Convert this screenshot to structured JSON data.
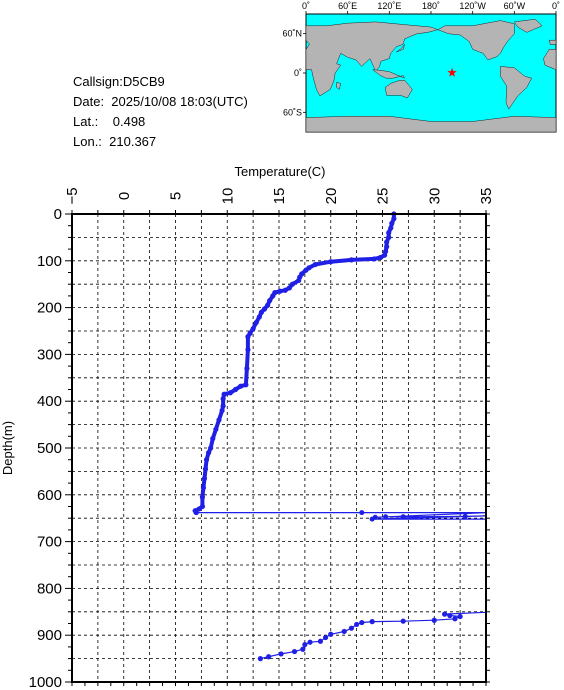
{
  "info": {
    "callsign": "Callsign:D5CB9",
    "date": "Date:  2025/10/08 18:03(UTC)",
    "lat": "Lat.:    0.498",
    "lon": "Lon.:  210.367"
  },
  "map": {
    "lon_ticks": [
      "0˚",
      "60˚E",
      "120˚E",
      "180˚",
      "120˚W",
      "60˚W",
      "0˚"
    ],
    "lat_ticks": [
      "60˚N",
      "0˚",
      "60˚S"
    ],
    "marker_lon": 210.367,
    "marker_lat": 0.498,
    "colors": {
      "ocean": "#00ffff",
      "land": "#b4b4b4",
      "marker": "#ff0000"
    }
  },
  "chart_data": {
    "type": "line",
    "xlabel": "Temperature(C)",
    "ylabel": "Depth(m)",
    "xlim": [
      -5,
      35
    ],
    "ylim": [
      0,
      1000
    ],
    "x_ticks": [
      "−5",
      "0",
      "5",
      "10",
      "15",
      "20",
      "25",
      "30",
      "35"
    ],
    "y_ticks": [
      "0",
      "100",
      "200",
      "300",
      "400",
      "500",
      "600",
      "700",
      "800",
      "900",
      "1000"
    ],
    "series_color": "#1f1fe6",
    "profile": [
      [
        26.1,
        0
      ],
      [
        26.1,
        10
      ],
      [
        25.9,
        20
      ],
      [
        25.8,
        30
      ],
      [
        25.6,
        40
      ],
      [
        25.6,
        50
      ],
      [
        25.4,
        60
      ],
      [
        25.4,
        70
      ],
      [
        25.3,
        80
      ],
      [
        25.2,
        88
      ],
      [
        24.8,
        93
      ],
      [
        24.2,
        96
      ],
      [
        22.0,
        98
      ],
      [
        20.0,
        102
      ],
      [
        18.5,
        108
      ],
      [
        17.9,
        115
      ],
      [
        17.6,
        120
      ],
      [
        17.2,
        128
      ],
      [
        17.0,
        135
      ],
      [
        16.9,
        142
      ],
      [
        16.3,
        150
      ],
      [
        16.0,
        158
      ],
      [
        15.6,
        163
      ],
      [
        15.1,
        165
      ],
      [
        14.6,
        168
      ],
      [
        14.4,
        175
      ],
      [
        14.1,
        185
      ],
      [
        13.9,
        195
      ],
      [
        13.6,
        203
      ],
      [
        13.3,
        210
      ],
      [
        13.1,
        220
      ],
      [
        12.8,
        232
      ],
      [
        12.5,
        245
      ],
      [
        12.2,
        255
      ],
      [
        12.0,
        262
      ],
      [
        12.0,
        290
      ],
      [
        11.9,
        330
      ],
      [
        11.8,
        365
      ],
      [
        11.3,
        368
      ],
      [
        10.8,
        375
      ],
      [
        10.3,
        382
      ],
      [
        9.7,
        385
      ],
      [
        9.6,
        395
      ],
      [
        9.6,
        410
      ],
      [
        9.5,
        420
      ],
      [
        9.2,
        440
      ],
      [
        8.9,
        460
      ],
      [
        8.6,
        480
      ],
      [
        8.4,
        500
      ],
      [
        8.2,
        510
      ],
      [
        8.0,
        525
      ],
      [
        7.9,
        545
      ],
      [
        7.8,
        565
      ],
      [
        7.7,
        585
      ],
      [
        7.6,
        605
      ],
      [
        7.6,
        625
      ],
      [
        7.3,
        630
      ],
      [
        6.9,
        634
      ],
      [
        7.0,
        638
      ]
    ],
    "spike1": [
      [
        7.0,
        638
      ],
      [
        23.0,
        638
      ],
      [
        36.0,
        638
      ],
      [
        24.3,
        648
      ],
      [
        25.3,
        647
      ],
      [
        27.0,
        647
      ],
      [
        33.0,
        646
      ],
      [
        36.0,
        645
      ],
      [
        24.0,
        652
      ],
      [
        36.0,
        652
      ]
    ],
    "deep": [
      [
        36.0,
        851
      ],
      [
        31.0,
        855
      ],
      [
        31.5,
        858
      ],
      [
        32.5,
        860
      ],
      [
        32.0,
        865
      ],
      [
        30.0,
        868
      ],
      [
        27.0,
        870
      ],
      [
        24.0,
        871
      ],
      [
        23.0,
        873
      ],
      [
        22.5,
        877
      ],
      [
        22.0,
        885
      ],
      [
        21.3,
        892
      ],
      [
        20.0,
        898
      ],
      [
        19.5,
        905
      ],
      [
        19.0,
        913
      ],
      [
        18.0,
        915
      ],
      [
        17.5,
        920
      ],
      [
        17.3,
        930
      ],
      [
        16.5,
        935
      ],
      [
        15.2,
        940
      ],
      [
        14.0,
        946
      ],
      [
        13.2,
        950
      ]
    ]
  }
}
